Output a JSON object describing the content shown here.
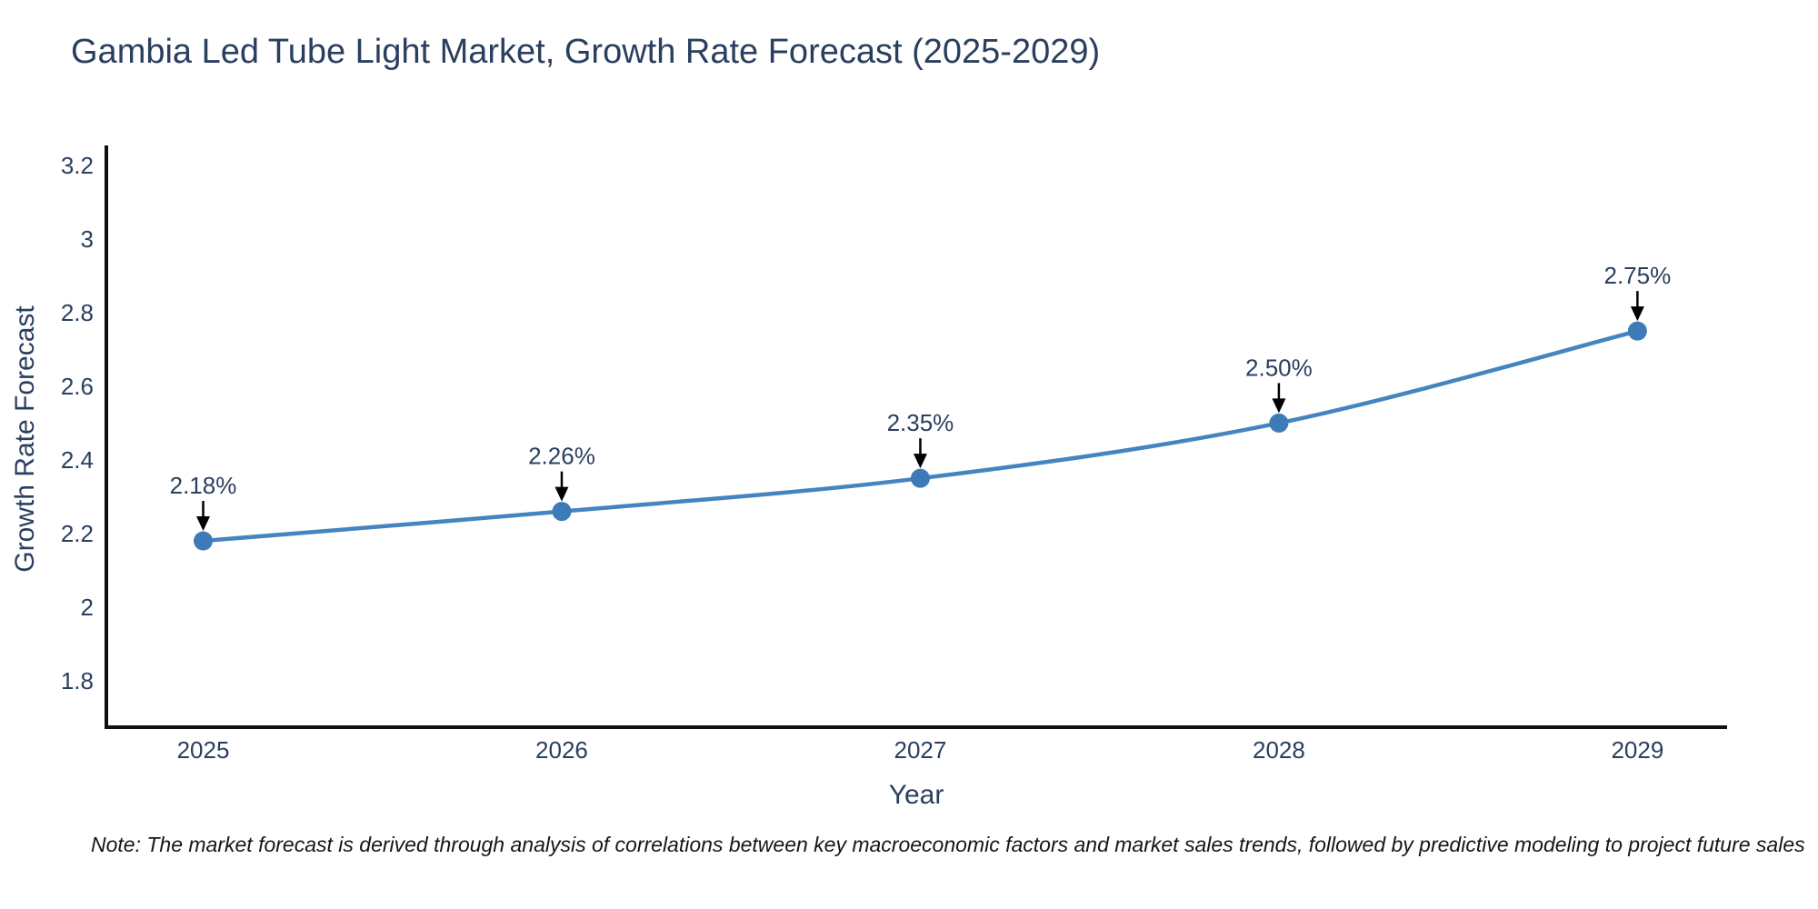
{
  "title": "Gambia Led Tube Light Market, Growth Rate Forecast (2025-2029)",
  "note": "Note: The market forecast is derived through analysis of correlations between key macroeconomic factors and market sales trends, followed by predictive modeling to project future sales",
  "chart_data": {
    "type": "line",
    "title": "Gambia Led Tube Light Market, Growth Rate Forecast (2025-2029)",
    "categories": [
      "2025",
      "2026",
      "2027",
      "2028",
      "2029"
    ],
    "x": [
      2025,
      2026,
      2027,
      2028,
      2029
    ],
    "series": [
      {
        "name": "Growth Rate Forecast",
        "values": [
          2.18,
          2.26,
          2.35,
          2.5,
          2.75
        ]
      }
    ],
    "point_labels": [
      "2.18%",
      "2.26%",
      "2.35%",
      "2.50%",
      "2.75%"
    ],
    "xlabel": "Year",
    "ylabel": "Growth Rate Forecast",
    "yticks": [
      1.8,
      2,
      2.2,
      2.4,
      2.6,
      2.8,
      3,
      3.2
    ],
    "ylim": [
      1.674,
      3.254
    ],
    "xlim": [
      2024.73,
      2029.25
    ],
    "grid": false,
    "legend": "none",
    "curve": "spline",
    "line_color": "#4584bf",
    "marker_color": "#3d7bb8",
    "annotation_color": "#2a3f5f",
    "arrow_color": "#000000",
    "axis_color": "#101010",
    "text_color": "#2a3f5f"
  }
}
